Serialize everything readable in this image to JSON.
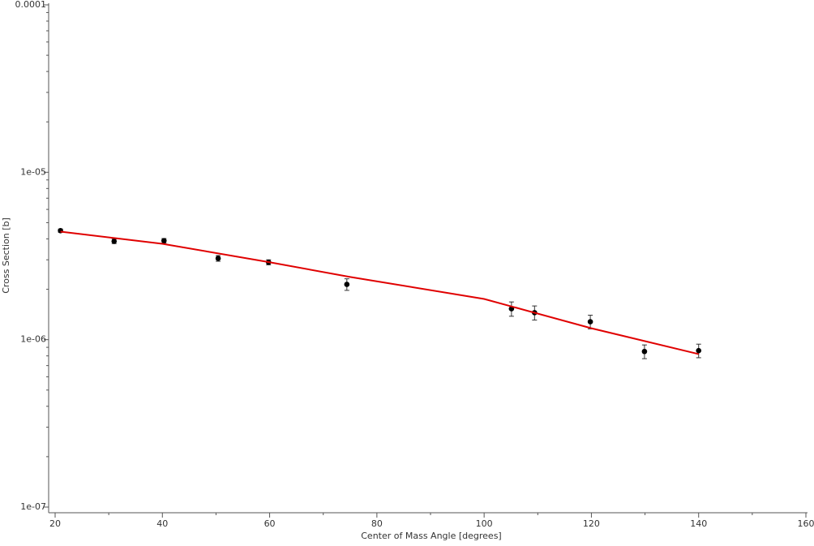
{
  "chart_data": {
    "type": "scatter",
    "xlabel": "Center of Mass Angle [degrees]",
    "ylabel": "Cross Section [b]",
    "xlim": [
      20,
      160
    ],
    "ylim": [
      1e-07,
      0.0001
    ],
    "yscale": "log",
    "xticks": [
      20,
      40,
      60,
      80,
      100,
      120,
      140,
      160
    ],
    "xminorticks": [
      30,
      50,
      70,
      90,
      110,
      130,
      150
    ],
    "yticks": [
      {
        "value": 1e-07,
        "label": "1e-07"
      },
      {
        "value": 1e-06,
        "label": "1e-06"
      },
      {
        "value": 1e-05,
        "label": "1e-05"
      },
      {
        "value": 0.0001,
        "label": "0.0001"
      }
    ],
    "yminorticks": [
      2e-07,
      3e-07,
      4e-07,
      5e-07,
      6e-07,
      7e-07,
      8e-07,
      9e-07,
      2e-06,
      3e-06,
      4e-06,
      5e-06,
      6e-06,
      7e-06,
      8e-06,
      9e-06,
      2e-05,
      3e-05,
      4e-05,
      5e-05,
      6e-05,
      7e-05,
      8e-05,
      9e-05
    ],
    "series": [
      {
        "type": "scatter",
        "color": "#000000",
        "x": [
          21,
          31,
          40.3,
          50.4,
          59.8,
          74.4,
          105.1,
          109.4,
          119.8,
          129.9,
          140
        ],
        "values": [
          4.48e-06,
          3.87e-06,
          3.9e-06,
          3.06e-06,
          2.9e-06,
          2.14e-06,
          1.53e-06,
          1.45e-06,
          1.28e-06,
          8.5e-07,
          8.6e-07
        ],
        "errors": [
          1e-07,
          1.2e-07,
          1.2e-07,
          1.2e-07,
          1e-07,
          1.7e-07,
          1.5e-07,
          1.4e-07,
          1.2e-07,
          8e-08,
          8e-08
        ]
      },
      {
        "type": "line",
        "color": "#e00000",
        "x": [
          21,
          40,
          60,
          75,
          100,
          120,
          140
        ],
        "values": [
          4.42e-06,
          3.74e-06,
          2.9e-06,
          2.37e-06,
          1.75e-06,
          1.17e-06,
          8.2e-07
        ]
      }
    ]
  }
}
